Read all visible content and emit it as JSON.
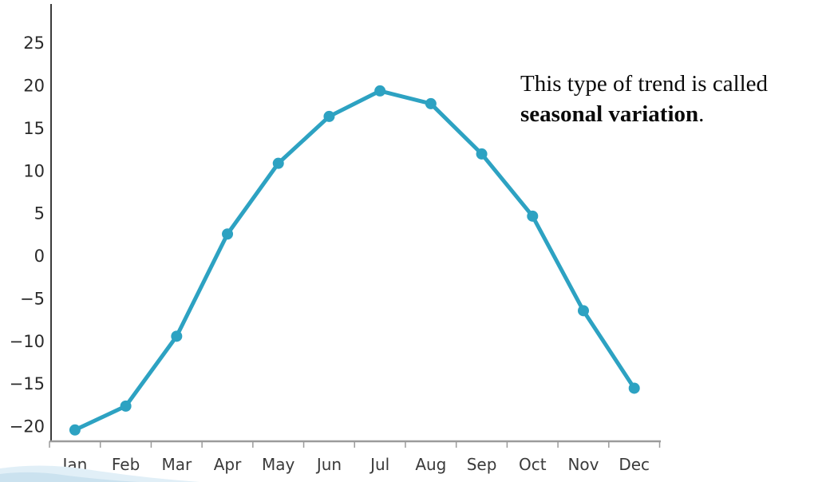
{
  "annotation": {
    "line1": "This type of trend is called",
    "bold_phrase": "seasonal variation",
    "period": "."
  },
  "chart_data": {
    "type": "line",
    "title": "",
    "xlabel": "",
    "ylabel": "",
    "categories": [
      "Jan",
      "Feb",
      "Mar",
      "Apr",
      "May",
      "Jun",
      "Jul",
      "Aug",
      "Sep",
      "Oct",
      "Nov",
      "Dec"
    ],
    "values": [
      -20.4,
      -17.6,
      -9.4,
      2.6,
      10.9,
      16.4,
      19.4,
      17.9,
      12.0,
      4.7,
      -6.4,
      -15.5
    ],
    "y_ticks": [
      25,
      20,
      15,
      10,
      5,
      0,
      -5,
      -10,
      -15,
      -20
    ],
    "ylim": [
      -22.5,
      27
    ],
    "grid": false,
    "legend_position": "none",
    "marker": "circle",
    "line_color": "#2da2c2"
  },
  "colors": {
    "line": "#2da2c2",
    "y_axis": "#3b3b3b",
    "x_axis": "#9b9b9b",
    "tick": "#9b9b9b",
    "y_label_text": "#2a2a2a",
    "x_label_text": "#3a3a3a",
    "annotation_text": "#0a0a0a",
    "swoosh_light": "#e1eff7",
    "swoosh_dark": "#cbe2ef",
    "background": "#ffffff"
  }
}
